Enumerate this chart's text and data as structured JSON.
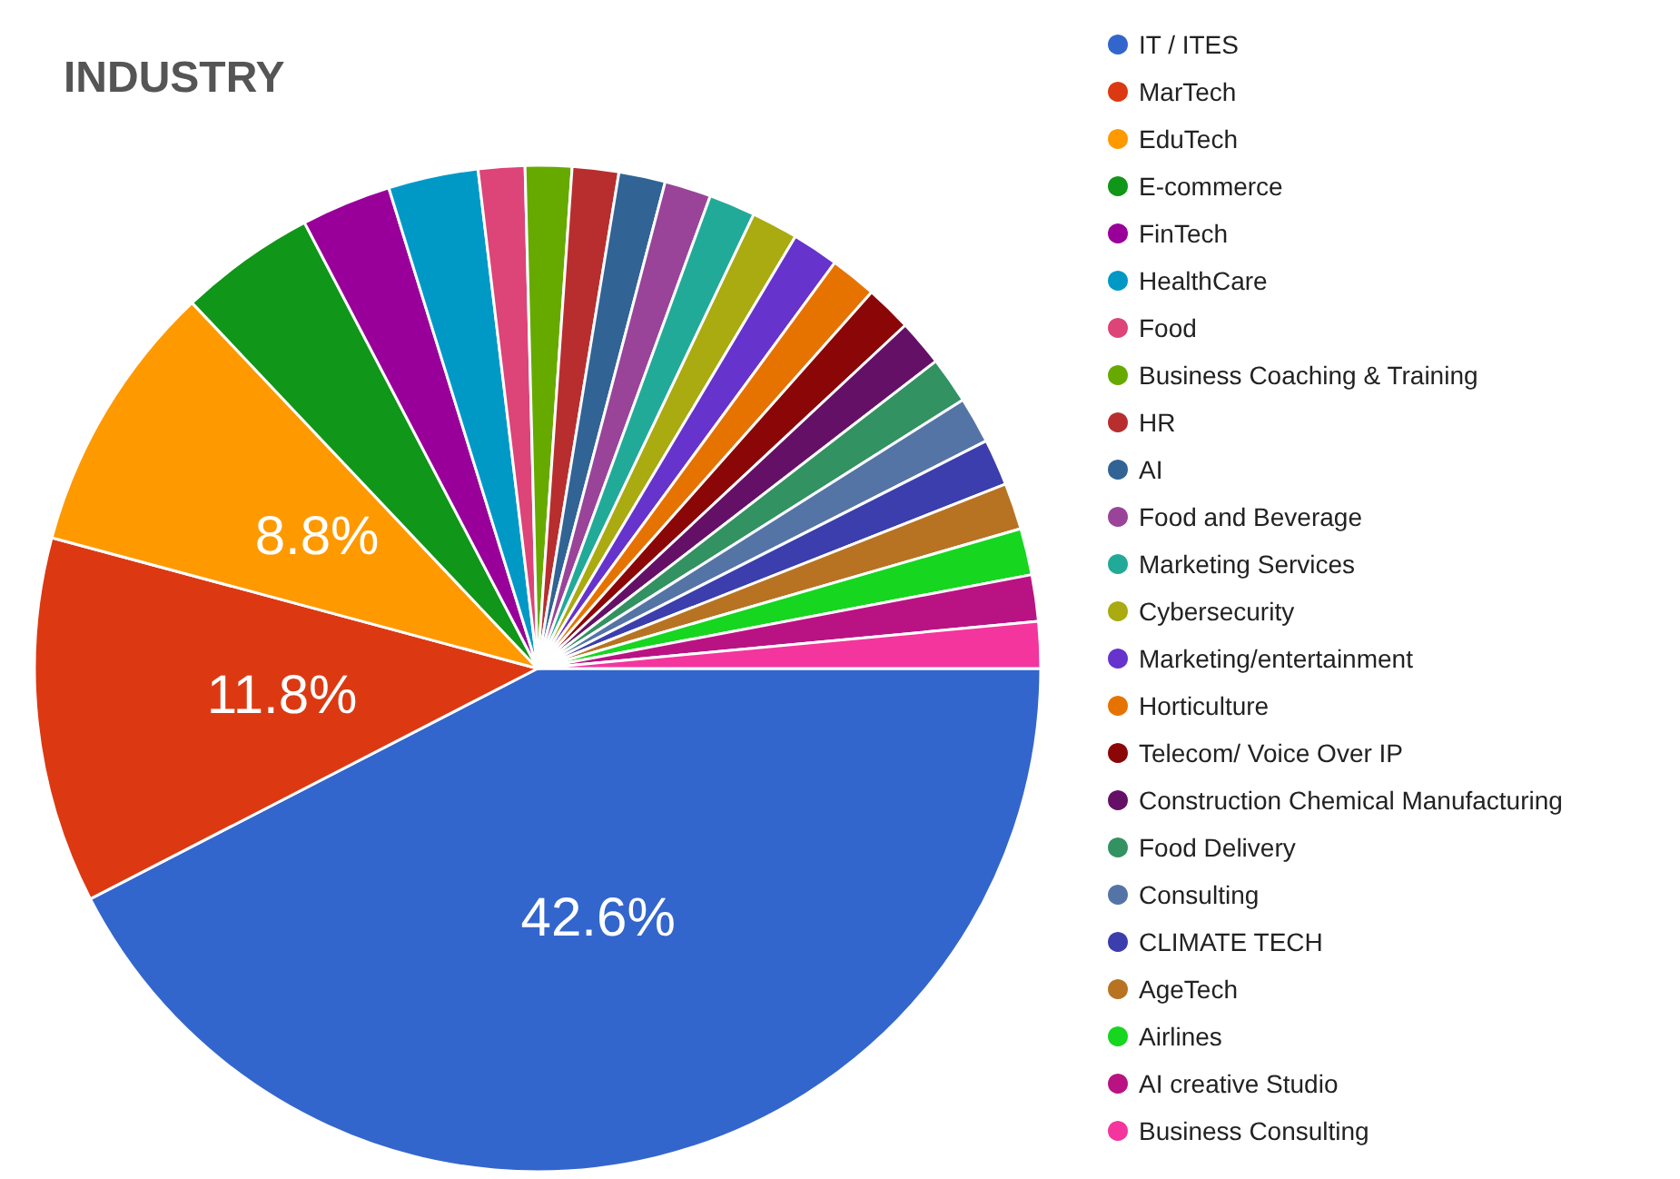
{
  "chart_data": {
    "type": "pie",
    "title": "INDUSTRY",
    "categories": [
      "IT / ITES",
      "MarTech",
      "EduTech",
      "E-commerce",
      "FinTech",
      "HealthCare",
      "Food",
      "Business Coaching & Training",
      "HR",
      "AI",
      "Food and Beverage",
      "Marketing Services",
      "Cybersecurity",
      "Marketing/entertainment",
      "Horticulture",
      "Telecom/ Voice Over IP",
      "Construction Chemical Manufacturing",
      "Food Delivery",
      "Consulting",
      "CLIMATE TECH",
      "AgeTech",
      "Airlines",
      "AI creative Studio",
      "Business Consulting"
    ],
    "values": [
      42.6,
      11.8,
      8.8,
      4.4,
      2.9,
      2.9,
      1.5,
      1.5,
      1.5,
      1.5,
      1.5,
      1.5,
      1.5,
      1.5,
      1.5,
      1.5,
      1.5,
      1.5,
      1.5,
      1.5,
      1.5,
      1.5,
      1.5,
      1.5
    ],
    "colors": [
      "#3366cc",
      "#dc3912",
      "#ff9900",
      "#109618",
      "#990099",
      "#0099c6",
      "#dd4477",
      "#66aa00",
      "#b82e2e",
      "#316395",
      "#994499",
      "#22aa99",
      "#aaaa11",
      "#6633cc",
      "#e67300",
      "#8b0707",
      "#651067",
      "#329262",
      "#5574a6",
      "#3b3eac",
      "#b77322",
      "#16d620",
      "#b91383",
      "#f4359e"
    ],
    "value_labels": [
      "42.6%",
      "11.8%",
      "8.8%",
      null,
      null,
      null,
      null,
      null,
      null,
      null,
      null,
      null,
      null,
      null,
      null,
      null,
      null,
      null,
      null,
      null,
      null,
      null,
      null,
      null
    ],
    "legend": "right"
  }
}
